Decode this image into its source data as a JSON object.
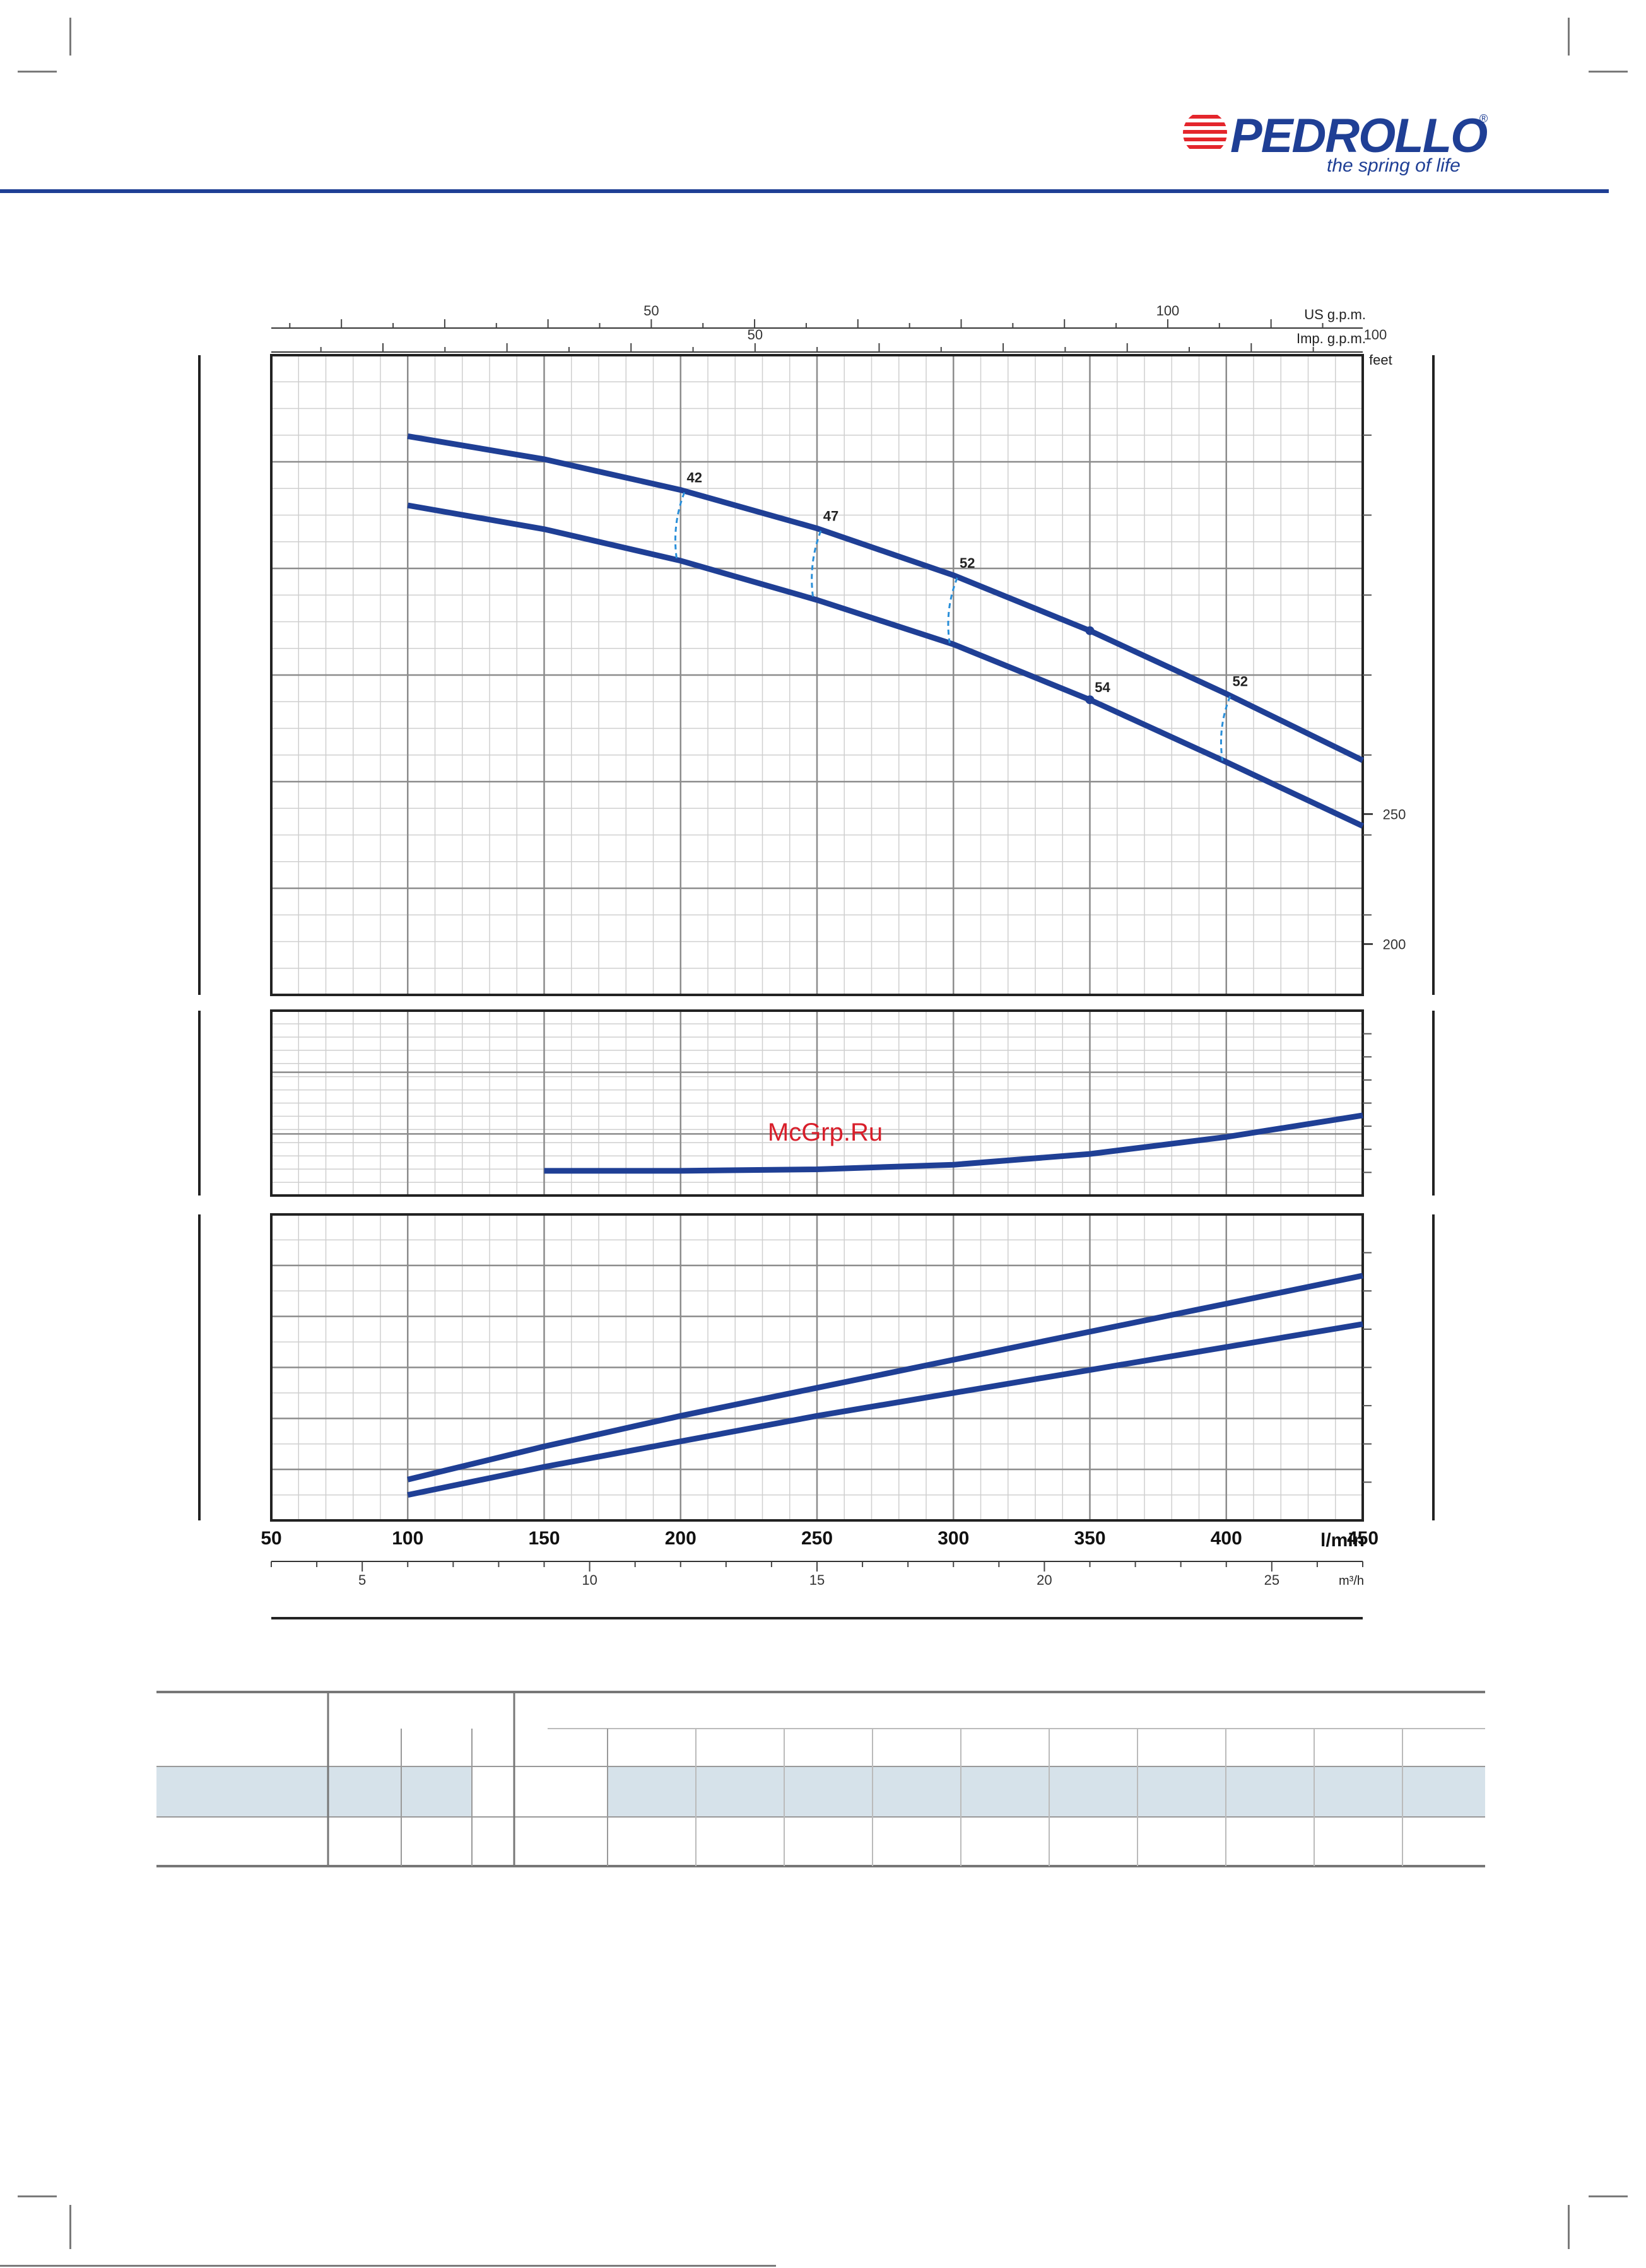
{
  "brand": {
    "logo_text": "PEDROLLO",
    "tagline": "the spring of life",
    "color": "#1f3f95",
    "accent": "#e4262c"
  },
  "watermark": {
    "text": "McGrp.Ru",
    "color": "#d81e2a"
  },
  "chart_data": [
    {
      "type": "line",
      "panel": "head",
      "x": [
        100,
        150,
        200,
        250,
        300,
        350,
        400,
        450
      ],
      "series": [
        {
          "values": [
            120.5,
            117.8,
            114.2,
            109.7,
            104.2,
            97.7,
            90.3,
            82.5
          ]
        },
        {
          "values": [
            112.4,
            109.6,
            105.9,
            101.3,
            96.1,
            89.6,
            82.3,
            74.8
          ]
        }
      ],
      "efficiency_markers": [
        {
          "x": 200,
          "label": "42"
        },
        {
          "x": 250,
          "label": "47"
        },
        {
          "x": 300,
          "label": "52"
        },
        {
          "x": 350,
          "label": "54"
        },
        {
          "x": 400,
          "label": "52"
        }
      ],
      "right_axis": {
        "title": "feet",
        "ticks": [
          {
            "value": 250,
            "label": "250"
          },
          {
            "value": 200,
            "label": "200"
          }
        ]
      },
      "top_axes": [
        {
          "title": "US g.p.m.",
          "ticks": [
            {
              "value": 50,
              "label": "50"
            },
            {
              "value": 100,
              "label": "100"
            }
          ]
        },
        {
          "title": "Imp. g.p.m.",
          "ticks": [
            {
              "value": 50,
              "label": "50"
            },
            {
              "value": 100,
              "label": "100"
            }
          ]
        }
      ],
      "grid": true
    },
    {
      "type": "line",
      "panel": "npsh",
      "x": [
        150,
        200,
        250,
        300,
        350,
        400,
        450
      ],
      "series": [
        {
          "values": [
            2.8,
            2.8,
            2.85,
            3.0,
            3.35,
            3.9,
            4.6
          ]
        }
      ],
      "grid": true
    },
    {
      "type": "line",
      "panel": "power",
      "x": [
        100,
        150,
        200,
        250,
        300,
        350,
        400,
        450
      ],
      "series": [
        {
          "values": [
            3.3,
            3.95,
            4.55,
            5.1,
            5.65,
            6.2,
            6.75,
            7.3
          ]
        },
        {
          "values": [
            3.0,
            3.55,
            4.05,
            4.55,
            5.0,
            5.45,
            5.9,
            6.35
          ]
        }
      ],
      "x_axis": {
        "title": "l/min",
        "ticks": [
          "50",
          "100",
          "150",
          "200",
          "250",
          "300",
          "350",
          "400",
          "450"
        ]
      },
      "secondary_x_axis": {
        "title": "m³/h",
        "ticks": [
          {
            "value": 5,
            "label": "5"
          },
          {
            "value": 10,
            "label": "10"
          },
          {
            "value": 15,
            "label": "15"
          },
          {
            "value": 20,
            "label": "20"
          },
          {
            "value": 25,
            "label": "25"
          }
        ]
      },
      "grid": true
    }
  ]
}
